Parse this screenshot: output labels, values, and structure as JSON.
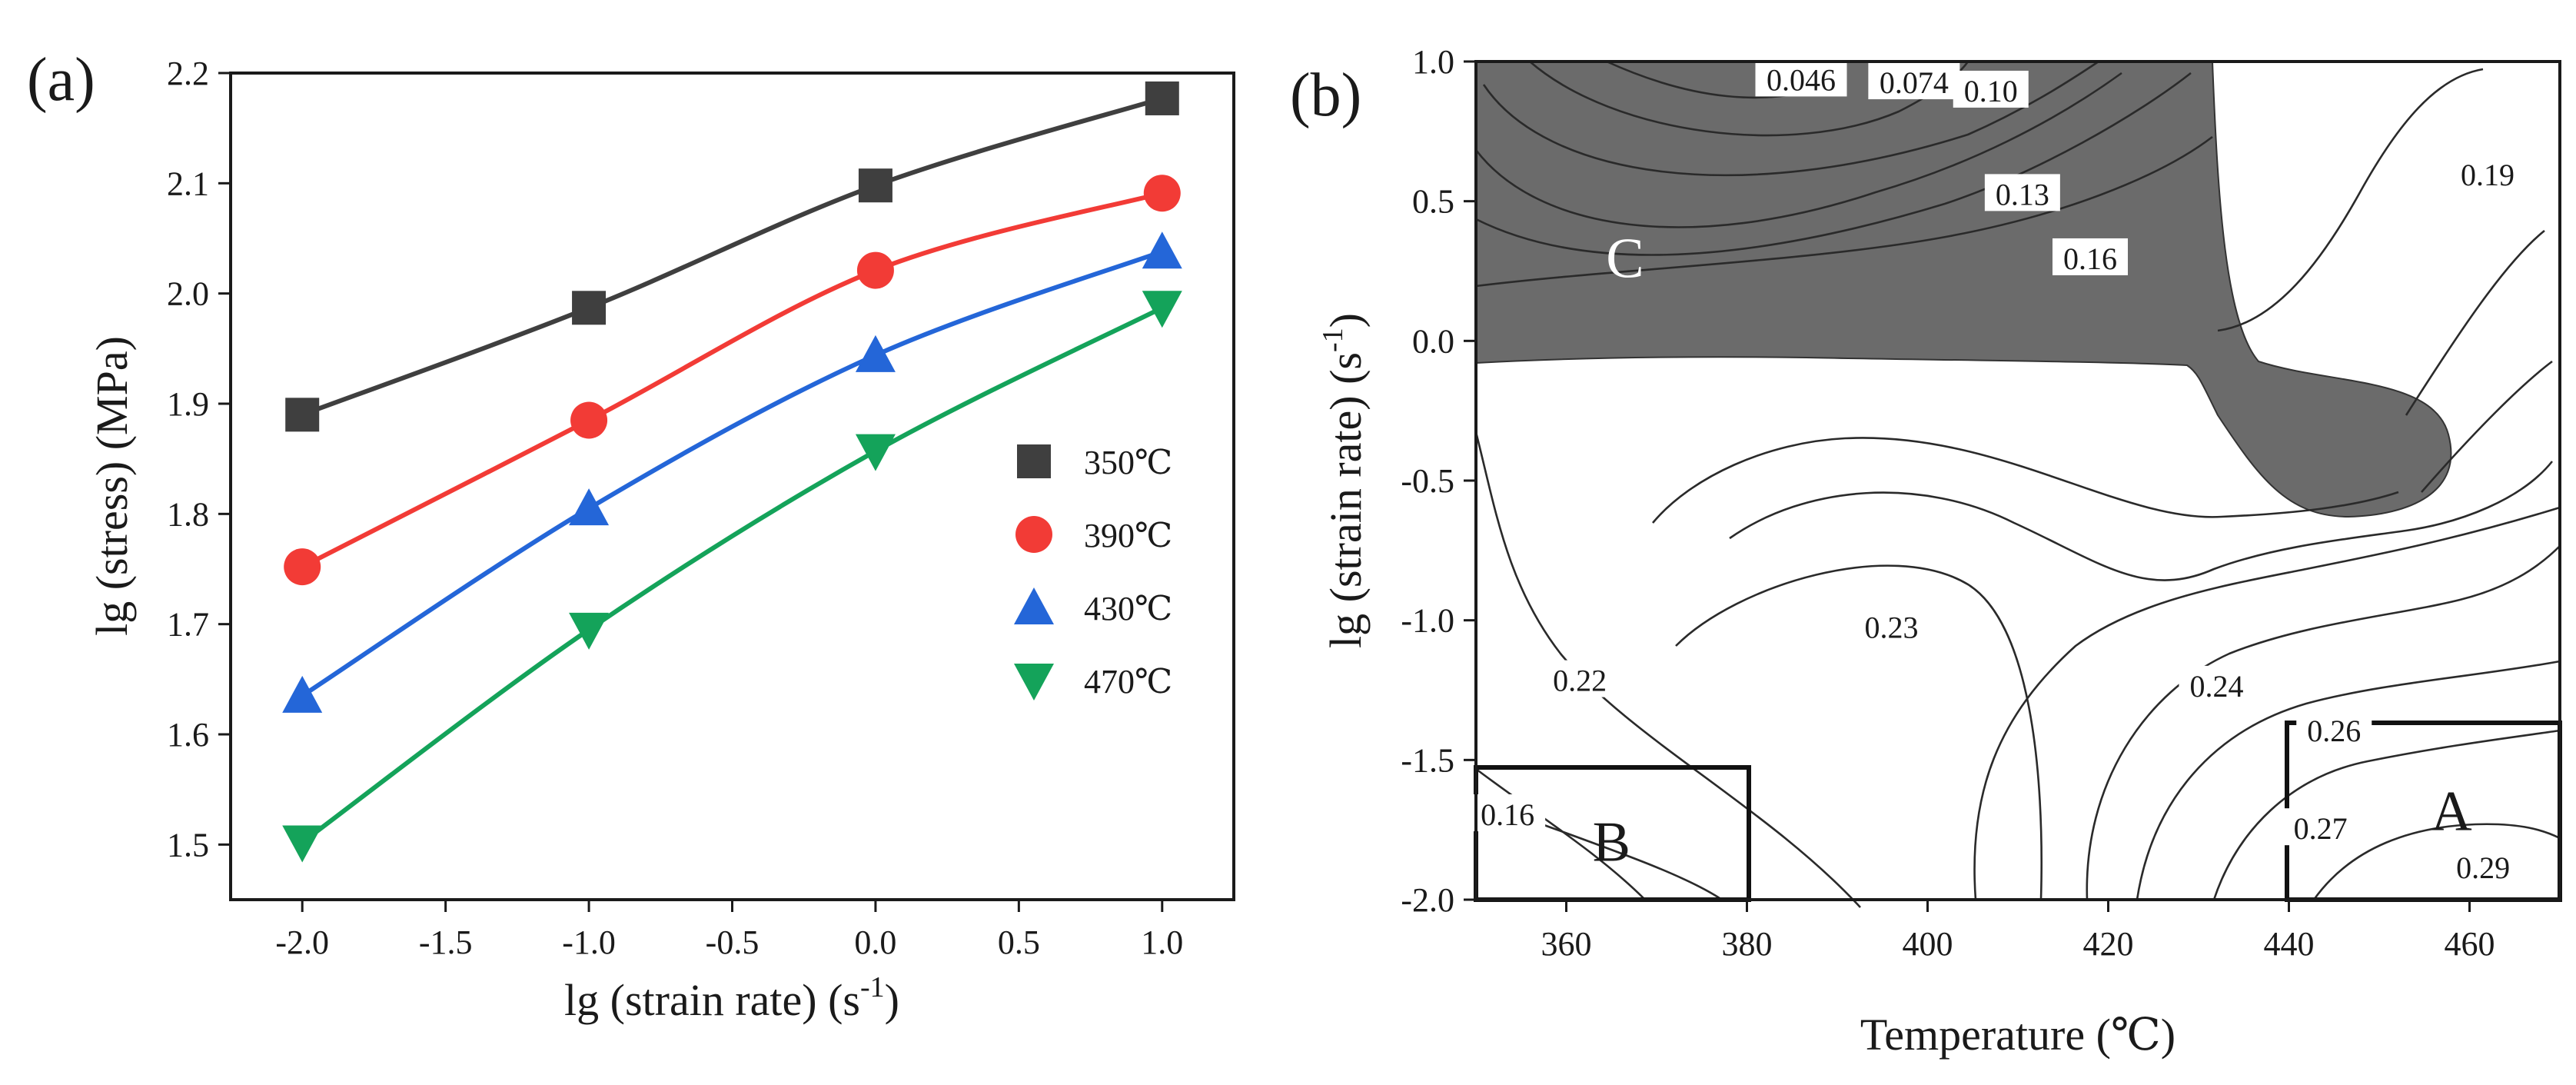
{
  "colors": {
    "axis": "#1a1a1a",
    "shaded_region": "#6b6b6b",
    "contour_line": "#2a2a2a"
  },
  "chart_data": [
    {
      "type": "line",
      "panel_label": "(a)",
      "xlabel": "lg (strain rate) (s",
      "xlabel_sup": "-1",
      "xlabel_close": ")",
      "ylabel": "lg (stress) (MPa)",
      "xlim": [
        -2.25,
        1.25
      ],
      "ylim": [
        1.45,
        2.2
      ],
      "x_ticks": [
        -2.0,
        -1.5,
        -1.0,
        -0.5,
        0.0,
        0.5,
        1.0
      ],
      "x_tick_labels": [
        "-2.0",
        "-1.5",
        "-1.0",
        "-0.5",
        "0.0",
        "0.5",
        "1.0"
      ],
      "y_ticks": [
        1.5,
        1.6,
        1.7,
        1.8,
        1.9,
        2.0,
        2.1,
        2.2
      ],
      "y_tick_labels": [
        "1.5",
        "1.6",
        "1.7",
        "1.8",
        "1.9",
        "2.0",
        "2.1",
        "2.2"
      ],
      "x": [
        -2.0,
        -1.0,
        0.0,
        1.0
      ],
      "legend_position": "right",
      "series": [
        {
          "name": "350℃",
          "marker": "square",
          "color": "#3f3f3f",
          "values": [
            1.89,
            1.987,
            2.098,
            2.177
          ]
        },
        {
          "name": "390℃",
          "marker": "circle",
          "color": "#f23b36",
          "values": [
            1.752,
            1.885,
            2.021,
            2.091
          ]
        },
        {
          "name": "430℃",
          "marker": "triangle-up",
          "color": "#2466d8",
          "values": [
            1.635,
            1.805,
            1.944,
            2.038
          ]
        },
        {
          "name": "470℃",
          "marker": "triangle-down",
          "color": "#14a35a",
          "values": [
            1.502,
            1.695,
            1.857,
            1.987
          ]
        }
      ]
    },
    {
      "type": "contour",
      "panel_label": "(b)",
      "xlabel": "Temperature (℃)",
      "ylabel": "lg (strain rate) (s",
      "ylabel_sup": "-1",
      "ylabel_close": ")",
      "xlim": [
        350,
        470
      ],
      "ylim": [
        -2.0,
        1.0
      ],
      "x_ticks": [
        360,
        380,
        400,
        420,
        440,
        460
      ],
      "x_tick_labels": [
        "360",
        "380",
        "400",
        "420",
        "440",
        "460"
      ],
      "y_ticks": [
        -2.0,
        -1.5,
        -1.0,
        -0.5,
        0.0,
        0.5,
        1.0
      ],
      "y_tick_labels": [
        "-2.0",
        "-1.5",
        "-1.0",
        "-0.5",
        "0.0",
        "0.5",
        "1.0"
      ],
      "contour_labels": [
        {
          "text": "0.046",
          "x": 386,
          "y": 0.93
        },
        {
          "text": "0.074",
          "x": 398.5,
          "y": 0.92
        },
        {
          "text": "0.10",
          "x": 407,
          "y": 0.89
        },
        {
          "text": "0.13",
          "x": 410.5,
          "y": 0.52
        },
        {
          "text": "0.16",
          "x": 418,
          "y": 0.29
        },
        {
          "text": "0.19",
          "x": 462,
          "y": 0.59
        },
        {
          "text": "0.22",
          "x": 361.5,
          "y": -1.22
        },
        {
          "text": "0.23",
          "x": 396,
          "y": -1.03
        },
        {
          "text": "0.24",
          "x": 432,
          "y": -1.24
        },
        {
          "text": "0.26",
          "x": 445,
          "y": -1.4
        },
        {
          "text": "0.27",
          "x": 443.5,
          "y": -1.75
        },
        {
          "text": "0.29",
          "x": 461.5,
          "y": -1.89
        },
        {
          "text": "0.16",
          "x": 353.5,
          "y": -1.7
        }
      ],
      "regions": [
        {
          "label": "A",
          "x_range": [
            440,
            470
          ],
          "y_range": [
            -2.0,
            -1.37
          ],
          "label_x": 458,
          "label_y": -1.68
        },
        {
          "label": "B",
          "x_range": [
            350,
            380
          ],
          "y_range": [
            -2.0,
            -1.52
          ],
          "label_x": 365,
          "label_y": -1.79
        },
        {
          "label": "C",
          "shaded": true,
          "label_x": 366.5,
          "label_y": 0.3
        }
      ]
    }
  ]
}
